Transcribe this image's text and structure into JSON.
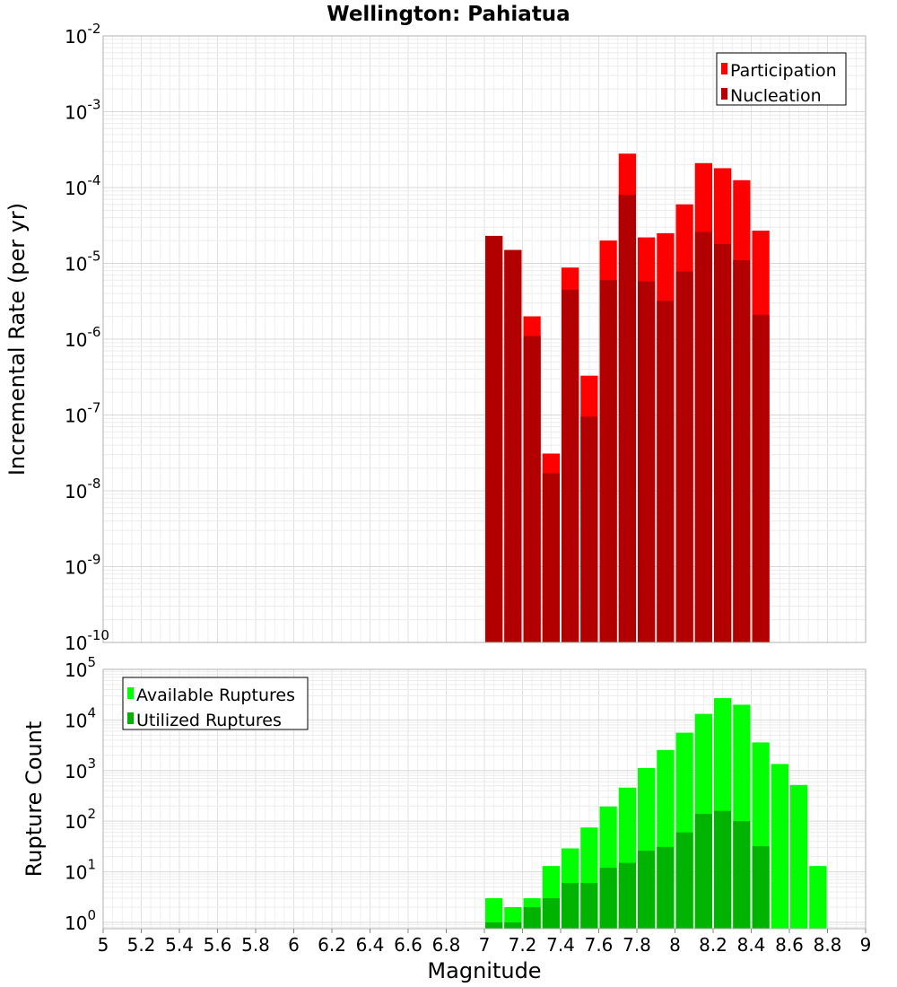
{
  "chart_data": [
    {
      "type": "bar",
      "title": "Wellington: Pahiatua",
      "ylabel": "Incremental Rate (per yr)",
      "xlabel": "",
      "yscale": "log",
      "ylim": [
        1e-10,
        0.01
      ],
      "xlim": [
        5,
        9
      ],
      "grid": true,
      "legend_position": "top-right",
      "x": [
        7.05,
        7.15,
        7.25,
        7.35,
        7.45,
        7.55,
        7.65,
        7.75,
        7.85,
        7.95,
        8.05,
        8.15,
        8.25,
        8.35,
        8.45
      ],
      "series": [
        {
          "name": "Participation",
          "color": "#ff0000",
          "values": [
            2.3e-05,
            1.5e-05,
            2e-06,
            3.1e-08,
            8.8e-06,
            3.3e-07,
            2e-05,
            0.00028,
            2.2e-05,
            2.5e-05,
            6e-05,
            0.00021,
            0.00018,
            0.000125,
            2.7e-05
          ]
        },
        {
          "name": "Nucleation",
          "color": "#b20000",
          "values": [
            2.3e-05,
            1.5e-05,
            1.1e-06,
            1.7e-08,
            4.5e-06,
            9.5e-08,
            6e-06,
            8e-05,
            5.8e-06,
            3.2e-06,
            7.8e-06,
            2.6e-05,
            1.8e-05,
            1.1e-05,
            2.1e-06
          ]
        }
      ]
    },
    {
      "type": "bar",
      "title": "",
      "ylabel": "Rupture Count",
      "xlabel": "Magnitude",
      "yscale": "log",
      "ylim": [
        0.75,
        100000.0
      ],
      "xlim": [
        5,
        9
      ],
      "grid": true,
      "legend_position": "top-left",
      "x": [
        7.05,
        7.15,
        7.25,
        7.35,
        7.45,
        7.55,
        7.65,
        7.75,
        7.85,
        7.95,
        8.05,
        8.15,
        8.25,
        8.35,
        8.45,
        8.55,
        8.65,
        8.75
      ],
      "series": [
        {
          "name": "Available Ruptures",
          "color": "#00ff00",
          "values": [
            3,
            2,
            3,
            13,
            29,
            75,
            195,
            460,
            1120,
            2550,
            5600,
            13200,
            27000,
            20000,
            3600,
            1350,
            520,
            13
          ]
        },
        {
          "name": "Utilized Ruptures",
          "color": "#00b300",
          "values": [
            1,
            1,
            2,
            3,
            6,
            6,
            12,
            15,
            26,
            31,
            60,
            140,
            160,
            100,
            32,
            null,
            null,
            null
          ]
        }
      ]
    }
  ],
  "x_ticks": [
    "5",
    "5.2",
    "5.4",
    "5.6",
    "5.8",
    "6",
    "6.2",
    "6.4",
    "6.6",
    "6.8",
    "7",
    "7.2",
    "7.4",
    "7.6",
    "7.8",
    "8",
    "8.2",
    "8.4",
    "8.6",
    "8.8",
    "9"
  ],
  "top_y_ticks": [
    {
      "base": "10",
      "exp": "-10"
    },
    {
      "base": "10",
      "exp": "-9"
    },
    {
      "base": "10",
      "exp": "-8"
    },
    {
      "base": "10",
      "exp": "-7"
    },
    {
      "base": "10",
      "exp": "-6"
    },
    {
      "base": "10",
      "exp": "-5"
    },
    {
      "base": "10",
      "exp": "-4"
    },
    {
      "base": "10",
      "exp": "-3"
    },
    {
      "base": "10",
      "exp": "-2"
    }
  ],
  "bottom_y_ticks": [
    {
      "base": "10",
      "exp": "0"
    },
    {
      "base": "10",
      "exp": "1"
    },
    {
      "base": "10",
      "exp": "2"
    },
    {
      "base": "10",
      "exp": "3"
    },
    {
      "base": "10",
      "exp": "4"
    },
    {
      "base": "10",
      "exp": "5"
    }
  ]
}
